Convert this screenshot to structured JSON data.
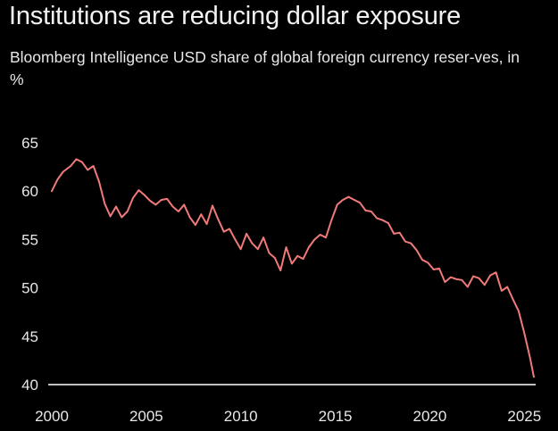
{
  "title": "Institutions are reducing dollar exposure",
  "subtitle": "Bloomberg Intelligence USD share of global foreign currency reser-ves, in %",
  "colors": {
    "background": "#000000",
    "line": "#f07a7a",
    "axis": "#ffffff",
    "text": "#e8e8e8"
  },
  "chart_data": {
    "type": "line",
    "title": "Institutions are reducing dollar exposure",
    "subtitle": "Bloomberg Intelligence USD share of global foreign currency reser-ves, in %",
    "xlabel": "",
    "ylabel": "",
    "xlim": [
      2000,
      2025.6
    ],
    "ylim": [
      40,
      65
    ],
    "xticks": [
      "2000",
      "2005",
      "2010",
      "2015",
      "2020",
      "2025"
    ],
    "yticks": [
      "40",
      "45",
      "50",
      "55",
      "60",
      "65"
    ],
    "grid": false,
    "legend": "none",
    "series": [
      {
        "x": [
          2000.0,
          2000.3,
          2000.6,
          2001.0,
          2001.3,
          2001.6,
          2001.9,
          2002.2,
          2002.5,
          2002.8,
          2003.1,
          2003.4,
          2003.7,
          2004.0,
          2004.3,
          2004.6,
          2004.9,
          2005.2,
          2005.5,
          2005.8,
          2006.1,
          2006.4,
          2006.7,
          2007.0,
          2007.3,
          2007.6,
          2007.9,
          2008.2,
          2008.5,
          2008.8,
          2009.1,
          2009.4,
          2009.7,
          2010.0,
          2010.3,
          2010.6,
          2010.9,
          2011.2,
          2011.5,
          2011.8,
          2012.1,
          2012.4,
          2012.7,
          2013.0,
          2013.3,
          2013.6,
          2013.9,
          2014.2,
          2014.5,
          2014.8,
          2015.1,
          2015.4,
          2015.7,
          2016.0,
          2016.3,
          2016.6,
          2016.9,
          2017.2,
          2017.5,
          2017.8,
          2018.1,
          2018.4,
          2018.7,
          2019.0,
          2019.3,
          2019.6,
          2019.9,
          2020.2,
          2020.5,
          2020.8,
          2021.1,
          2021.4,
          2021.7,
          2022.0,
          2022.3,
          2022.6,
          2022.9,
          2023.2,
          2023.5,
          2023.8,
          2024.1,
          2024.4,
          2024.7,
          2025.0,
          2025.3,
          2025.5
        ],
        "values": [
          60.0,
          61.2,
          62.0,
          62.6,
          63.3,
          63.0,
          62.2,
          62.6,
          61.0,
          58.7,
          57.4,
          58.4,
          57.3,
          57.9,
          59.3,
          60.1,
          59.6,
          59.0,
          58.6,
          59.1,
          59.2,
          58.4,
          57.9,
          58.6,
          57.3,
          56.5,
          57.6,
          56.6,
          58.5,
          57.1,
          55.8,
          56.1,
          55.0,
          54.0,
          55.6,
          54.6,
          54.0,
          55.2,
          53.6,
          53.1,
          51.8,
          54.2,
          52.5,
          53.3,
          53.0,
          54.2,
          55.0,
          55.5,
          55.2,
          57.0,
          58.6,
          59.1,
          59.4,
          59.1,
          58.8,
          58.0,
          57.9,
          57.2,
          57.0,
          56.7,
          55.6,
          55.7,
          54.8,
          54.6,
          53.9,
          52.9,
          52.6,
          51.9,
          52.0,
          50.6,
          51.1,
          50.9,
          50.8,
          50.1,
          51.2,
          51.0,
          50.3,
          51.3,
          51.6,
          49.7,
          50.1,
          48.8,
          47.6,
          45.3,
          42.8,
          40.8
        ]
      }
    ]
  }
}
